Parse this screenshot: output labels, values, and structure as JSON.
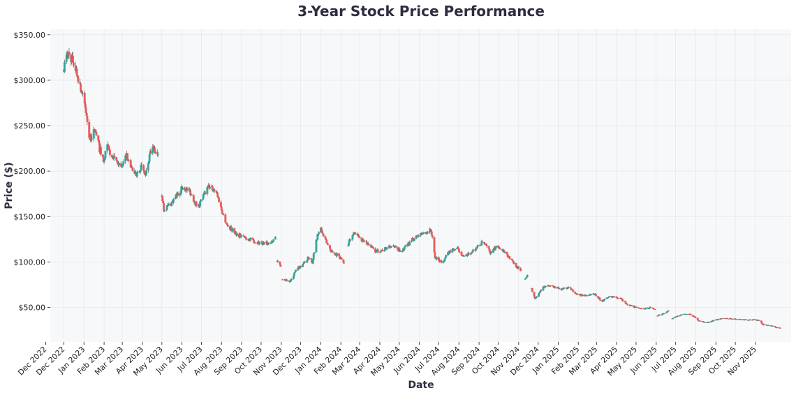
{
  "chart_data": {
    "type": "candlestick",
    "title": "3-Year Stock Price Performance",
    "xlabel": "Date",
    "ylabel": "Price ($)",
    "ylim": [
      12,
      356
    ],
    "xlim": [
      "2022-11-10",
      "2025-12-26"
    ],
    "grid": true,
    "colors": {
      "up": "#26a69a",
      "down": "#ef5350",
      "background": "#f7f8fa",
      "grid": "#e6e8ec"
    },
    "y_ticks": [
      50,
      100,
      150,
      200,
      250,
      300,
      350
    ],
    "y_tick_labels": [
      "$50.00",
      "$100.00",
      "$150.00",
      "$200.00",
      "$250.00",
      "$300.00",
      "$350.00"
    ],
    "x_tick_labels": [
      "Dec 2022",
      "Dec 2022",
      "Jan 2023",
      "Feb 2023",
      "Mar 2023",
      "Apr 2023",
      "May 2023",
      "Jun 2023",
      "Jul 2023",
      "Aug 2023",
      "Sep 2023",
      "Oct 2023",
      "Nov 2023",
      "Dec 2023",
      "Jan 2024",
      "Feb 2024",
      "Mar 2024",
      "Apr 2024",
      "May 2024",
      "Jun 2024",
      "Jul 2024",
      "Aug 2024",
      "Sep 2024",
      "Oct 2024",
      "Nov 2024",
      "Dec 2024",
      "Jan 2025",
      "Feb 2025",
      "Mar 2025",
      "Apr 2025",
      "May 2025",
      "Jun 2025",
      "Jul 2025",
      "Aug 2025",
      "Sep 2025",
      "Oct 2025",
      "Nov 2025"
    ],
    "x_tick_dates": [
      "2022-12-01",
      "2022-12-01",
      "2023-01-01",
      "2023-02-01",
      "2023-03-01",
      "2023-04-01",
      "2023-05-01",
      "2023-06-01",
      "2023-07-01",
      "2023-08-01",
      "2023-09-01",
      "2023-10-01",
      "2023-11-01",
      "2023-12-01",
      "2024-01-01",
      "2024-02-01",
      "2024-03-01",
      "2024-04-01",
      "2024-05-01",
      "2024-06-01",
      "2024-07-01",
      "2024-08-01",
      "2024-09-01",
      "2024-10-01",
      "2024-11-01",
      "2024-12-01",
      "2025-01-01",
      "2025-02-01",
      "2025-03-01",
      "2025-04-01",
      "2025-05-01",
      "2025-06-01",
      "2025-07-01",
      "2025-08-01",
      "2025-09-01",
      "2025-10-01",
      "2025-11-01"
    ],
    "approx_close_segments": [
      [
        [
          "2022-12-01",
          315
        ],
        [
          "2022-12-07",
          330
        ],
        [
          "2022-12-16",
          320
        ],
        [
          "2022-12-24",
          300
        ],
        [
          "2023-01-03",
          270
        ],
        [
          "2023-01-10",
          235
        ],
        [
          "2023-01-18",
          245
        ],
        [
          "2023-01-25",
          225
        ],
        [
          "2023-02-01",
          210
        ],
        [
          "2023-02-05",
          228
        ],
        [
          "2023-02-13",
          215
        ],
        [
          "2023-03-01",
          205
        ],
        [
          "2023-03-08",
          218
        ],
        [
          "2023-03-20",
          195
        ],
        [
          "2023-03-30",
          205
        ],
        [
          "2023-04-06",
          195
        ],
        [
          "2023-04-15",
          225
        ],
        [
          "2023-04-25",
          220
        ]
      ],
      [
        [
          "2023-05-01",
          175
        ],
        [
          "2023-05-04",
          158
        ],
        [
          "2023-05-16",
          165
        ],
        [
          "2023-06-02",
          182
        ],
        [
          "2023-06-13",
          178
        ],
        [
          "2023-06-25",
          160
        ],
        [
          "2023-07-12",
          183
        ],
        [
          "2023-07-24",
          178
        ],
        [
          "2023-08-02",
          155
        ],
        [
          "2023-08-10",
          140
        ],
        [
          "2023-08-26",
          130
        ],
        [
          "2023-09-13",
          125
        ],
        [
          "2023-09-23",
          122
        ],
        [
          "2023-10-12",
          120
        ],
        [
          "2023-10-23",
          127
        ]
      ],
      [
        [
          "2023-10-26",
          100
        ],
        [
          "2023-10-31",
          95
        ]
      ],
      [
        [
          "2023-11-03",
          82
        ],
        [
          "2023-11-15",
          78
        ],
        [
          "2023-11-23",
          90
        ],
        [
          "2023-12-14",
          105
        ],
        [
          "2023-12-19",
          100
        ],
        [
          "2023-12-25",
          125
        ],
        [
          "2024-01-01",
          137
        ],
        [
          "2024-01-05",
          128
        ],
        [
          "2024-01-17",
          112
        ],
        [
          "2024-01-28",
          107
        ],
        [
          "2024-02-06",
          100
        ]
      ],
      [
        [
          "2024-02-12",
          120
        ],
        [
          "2024-02-20",
          133
        ],
        [
          "2024-03-03",
          125
        ],
        [
          "2024-03-14",
          120
        ],
        [
          "2024-03-25",
          112
        ],
        [
          "2024-04-06",
          113
        ],
        [
          "2024-04-17",
          118
        ],
        [
          "2024-05-05",
          112
        ],
        [
          "2024-05-22",
          125
        ],
        [
          "2024-06-02",
          130
        ],
        [
          "2024-06-19",
          135
        ],
        [
          "2024-06-25",
          105
        ],
        [
          "2024-07-06",
          100
        ],
        [
          "2024-07-18",
          112
        ],
        [
          "2024-07-29",
          115
        ],
        [
          "2024-08-10",
          105
        ],
        [
          "2024-08-27",
          115
        ],
        [
          "2024-09-07",
          122
        ],
        [
          "2024-09-19",
          110
        ],
        [
          "2024-09-30",
          118
        ],
        [
          "2024-10-12",
          110
        ],
        [
          "2024-10-23",
          100
        ],
        [
          "2024-11-04",
          90
        ]
      ],
      [
        [
          "2024-11-09",
          80
        ],
        [
          "2024-11-16",
          87
        ]
      ],
      [
        [
          "2024-11-21",
          70
        ],
        [
          "2024-11-26",
          60
        ],
        [
          "2024-12-08",
          72
        ],
        [
          "2024-12-19",
          74
        ],
        [
          "2025-01-05",
          70
        ],
        [
          "2025-01-17",
          72
        ],
        [
          "2025-01-28",
          65
        ],
        [
          "2025-02-09",
          63
        ],
        [
          "2025-02-26",
          65
        ],
        [
          "2025-03-09",
          57
        ],
        [
          "2025-03-21",
          62
        ],
        [
          "2025-04-07",
          60
        ],
        [
          "2025-04-18",
          53
        ],
        [
          "2025-04-30",
          50
        ],
        [
          "2025-05-11",
          48
        ],
        [
          "2025-05-23",
          50
        ],
        [
          "2025-06-01",
          47
        ]
      ],
      [
        [
          "2025-06-03",
          41
        ],
        [
          "2025-06-15",
          44
        ],
        [
          "2025-06-20",
          46
        ]
      ],
      [
        [
          "2025-06-26",
          38
        ],
        [
          "2025-07-13",
          43
        ],
        [
          "2025-07-25",
          42
        ],
        [
          "2025-08-05",
          36
        ],
        [
          "2025-08-17",
          33
        ],
        [
          "2025-09-03",
          37
        ],
        [
          "2025-09-20",
          38
        ],
        [
          "2025-10-07",
          37
        ],
        [
          "2025-11-07",
          36
        ],
        [
          "2025-11-13",
          31
        ],
        [
          "2025-11-24",
          30
        ],
        [
          "2025-12-09",
          27
        ]
      ]
    ]
  }
}
